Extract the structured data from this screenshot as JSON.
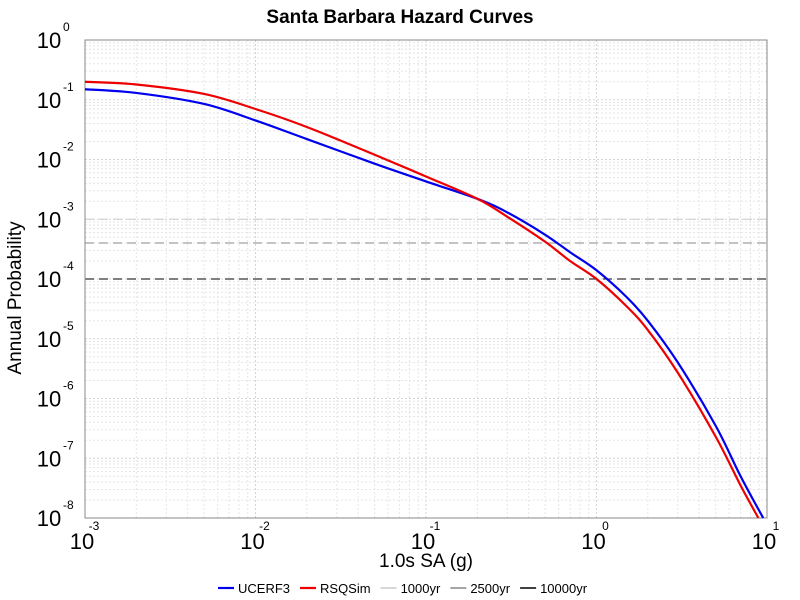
{
  "chart_data": {
    "type": "line",
    "title": "Santa Barbara Hazard Curves",
    "xlabel": "1.0s SA (g)",
    "ylabel": "Annual Probability",
    "xscale": "log",
    "yscale": "log",
    "xlim": [
      0.001,
      10
    ],
    "ylim": [
      1e-08,
      1
    ],
    "grid": true,
    "legend_position": "bottom",
    "x_ticks": [
      {
        "base": "10",
        "exp": "-3",
        "value": 0.001
      },
      {
        "base": "10",
        "exp": "-2",
        "value": 0.01
      },
      {
        "base": "10",
        "exp": "-1",
        "value": 0.1
      },
      {
        "base": "10",
        "exp": "0",
        "value": 1
      },
      {
        "base": "10",
        "exp": "1",
        "value": 10
      }
    ],
    "y_ticks": [
      {
        "base": "10",
        "exp": "0",
        "value": 1
      },
      {
        "base": "10",
        "exp": "-1",
        "value": 0.1
      },
      {
        "base": "10",
        "exp": "-2",
        "value": 0.01
      },
      {
        "base": "10",
        "exp": "-3",
        "value": 0.001
      },
      {
        "base": "10",
        "exp": "-4",
        "value": 0.0001
      },
      {
        "base": "10",
        "exp": "-5",
        "value": 1e-05
      },
      {
        "base": "10",
        "exp": "-6",
        "value": 1e-06
      },
      {
        "base": "10",
        "exp": "-7",
        "value": 1e-07
      },
      {
        "base": "10",
        "exp": "-8",
        "value": 1e-08
      }
    ],
    "series": [
      {
        "name": "UCERF3",
        "color": "#0000ee",
        "x": [
          0.001,
          0.002,
          0.005,
          0.01,
          0.02,
          0.05,
          0.1,
          0.2,
          0.3,
          0.5,
          0.7,
          1.0,
          1.5,
          2.0,
          3.0,
          5.0,
          7.0,
          9.5
        ],
        "y": [
          0.15,
          0.13,
          0.085,
          0.045,
          0.022,
          0.0085,
          0.0043,
          0.0022,
          0.0013,
          0.00055,
          0.00028,
          0.00014,
          5e-05,
          2e-05,
          4e-06,
          3.5e-07,
          5e-08,
          1e-08
        ]
      },
      {
        "name": "RSQSim",
        "color": "#ee0000",
        "x": [
          0.001,
          0.002,
          0.005,
          0.01,
          0.02,
          0.05,
          0.1,
          0.2,
          0.3,
          0.5,
          0.7,
          1.0,
          1.5,
          2.0,
          3.0,
          5.0,
          7.0,
          8.9
        ],
        "y": [
          0.2,
          0.18,
          0.125,
          0.07,
          0.035,
          0.012,
          0.0052,
          0.0022,
          0.0011,
          0.00042,
          0.0002,
          0.0001,
          3.5e-05,
          1.4e-05,
          2.7e-06,
          2.3e-07,
          3.5e-08,
          1e-08
        ]
      }
    ],
    "reference_lines": [
      {
        "name": "1000yr",
        "y": 0.001,
        "color": "#cccccc"
      },
      {
        "name": "2500yr",
        "y": 0.0004,
        "color": "#888888"
      },
      {
        "name": "10000yr",
        "y": 0.0001,
        "color": "#000000"
      }
    ]
  }
}
